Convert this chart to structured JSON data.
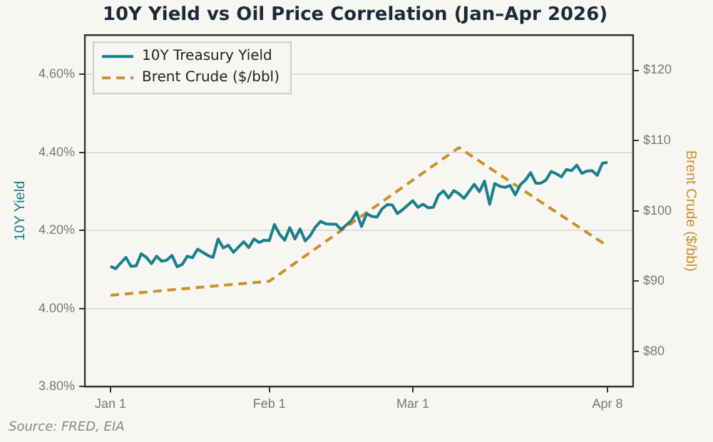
{
  "chart_data": {
    "type": "line",
    "title": "10Y Yield vs Oil Price Correlation (Jan–Apr 2026)",
    "ylabel": "10Y Yield",
    "y2label": "Brent Crude ($/bbl)",
    "xlim": [
      "2025-12-27",
      "2026-04-13"
    ],
    "xticks": [
      {
        "value": "2026-01-01",
        "label": "Jan 1"
      },
      {
        "value": "2026-02-01",
        "label": "Feb 1"
      },
      {
        "value": "2026-03-01",
        "label": "Mar 1"
      },
      {
        "value": "2026-04-08",
        "label": "Apr 8"
      }
    ],
    "ylim": [
      3.8,
      4.7
    ],
    "yticks": [
      {
        "value": 3.8,
        "label": "3.80%"
      },
      {
        "value": 4.0,
        "label": "4.00%"
      },
      {
        "value": 4.2,
        "label": "4.20%"
      },
      {
        "value": 4.4,
        "label": "4.40%"
      },
      {
        "value": 4.6,
        "label": "4.60%"
      }
    ],
    "y2lim": [
      75,
      125
    ],
    "y2ticks": [
      {
        "value": 80,
        "label": "$80"
      },
      {
        "value": 90,
        "label": "$90"
      },
      {
        "value": 100,
        "label": "$100"
      },
      {
        "value": 110,
        "label": "$110"
      },
      {
        "value": 120,
        "label": "$120"
      }
    ],
    "grid": "y",
    "legend": "top left",
    "marker": "none",
    "annotations": [
      "Source: FRED, EIA"
    ],
    "series": [
      {
        "name": "10Y Treasury Yield",
        "color": "#1a7f8a",
        "line_style": "solid",
        "x": [
          "2026-01-01",
          "2026-01-02",
          "2026-01-04",
          "2026-01-05",
          "2026-01-06",
          "2026-01-07",
          "2026-01-08",
          "2026-01-09",
          "2026-01-10",
          "2026-01-11",
          "2026-01-12",
          "2026-01-13",
          "2026-01-14",
          "2026-01-15",
          "2026-01-16",
          "2026-01-17",
          "2026-01-18",
          "2026-01-20",
          "2026-01-21",
          "2026-01-22",
          "2026-01-23",
          "2026-01-24",
          "2026-01-25",
          "2026-01-27",
          "2026-01-28",
          "2026-01-29",
          "2026-01-30",
          "2026-01-31",
          "2026-02-01",
          "2026-02-02",
          "2026-02-03",
          "2026-02-04",
          "2026-02-05",
          "2026-02-06",
          "2026-02-07",
          "2026-02-08",
          "2026-02-09",
          "2026-02-10",
          "2026-02-11",
          "2026-02-12",
          "2026-02-13",
          "2026-02-14",
          "2026-02-15",
          "2026-02-17",
          "2026-02-18",
          "2026-02-19",
          "2026-02-20",
          "2026-02-21",
          "2026-02-22",
          "2026-02-23",
          "2026-02-24",
          "2026-02-25",
          "2026-02-26",
          "2026-02-27",
          "2026-03-01",
          "2026-03-02",
          "2026-03-03",
          "2026-03-04",
          "2026-03-05",
          "2026-03-06",
          "2026-03-07",
          "2026-03-08",
          "2026-03-09",
          "2026-03-10",
          "2026-03-11",
          "2026-03-13",
          "2026-03-14",
          "2026-03-15",
          "2026-03-16",
          "2026-03-17",
          "2026-03-18",
          "2026-03-19",
          "2026-03-20",
          "2026-03-21",
          "2026-03-22",
          "2026-03-23",
          "2026-03-24",
          "2026-03-25",
          "2026-03-26",
          "2026-03-27",
          "2026-03-28",
          "2026-03-29",
          "2026-03-30",
          "2026-03-31",
          "2026-04-01",
          "2026-04-02",
          "2026-04-03",
          "2026-04-04",
          "2026-04-05",
          "2026-04-06",
          "2026-04-07",
          "2026-04-08"
        ],
        "values": [
          4.108,
          4.102,
          4.131,
          4.108,
          4.109,
          4.14,
          4.131,
          4.115,
          4.134,
          4.121,
          4.124,
          4.136,
          4.107,
          4.113,
          4.134,
          4.13,
          4.152,
          4.136,
          4.131,
          4.178,
          4.155,
          4.162,
          4.144,
          4.171,
          4.156,
          4.178,
          4.169,
          4.175,
          4.174,
          4.215,
          4.19,
          4.175,
          4.207,
          4.178,
          4.204,
          4.173,
          4.187,
          4.209,
          4.223,
          4.217,
          4.216,
          4.216,
          4.202,
          4.225,
          4.247,
          4.21,
          4.243,
          4.236,
          4.234,
          4.255,
          4.266,
          4.265,
          4.243,
          4.253,
          4.276,
          4.259,
          4.267,
          4.258,
          4.259,
          4.29,
          4.301,
          4.283,
          4.302,
          4.294,
          4.282,
          4.318,
          4.299,
          4.326,
          4.267,
          4.32,
          4.313,
          4.31,
          4.315,
          4.291,
          4.317,
          4.329,
          4.348,
          4.321,
          4.321,
          4.329,
          4.351,
          4.345,
          4.337,
          4.356,
          4.353,
          4.367,
          4.346,
          4.352,
          4.353,
          4.341,
          4.372,
          4.374
        ]
      },
      {
        "name": "Brent Crude ($/bbl)",
        "color": "#c8922a",
        "axis": "y2",
        "line_style": "dashed",
        "x": [
          "2026-01-01",
          "2026-02-01",
          "2026-03-10",
          "2026-04-08"
        ],
        "values": [
          88,
          90,
          109,
          95
        ]
      }
    ]
  }
}
